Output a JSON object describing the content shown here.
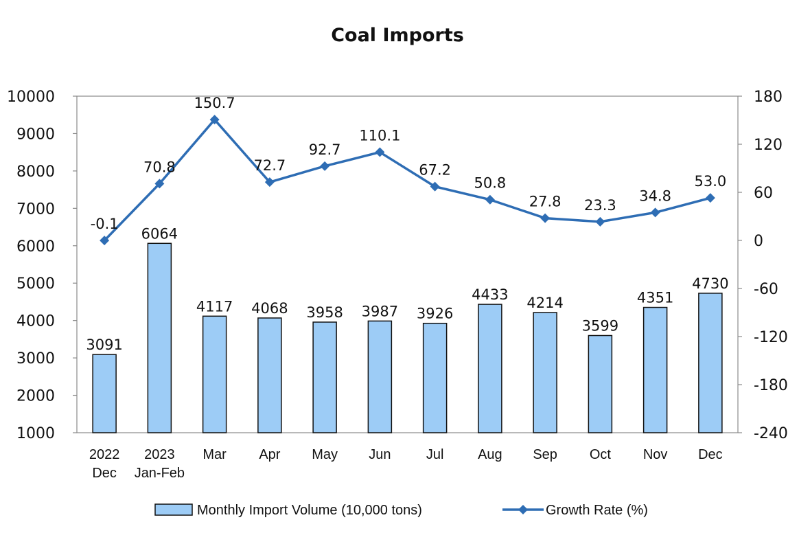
{
  "chart_data": {
    "type": "bar",
    "title": "Coal Imports",
    "categories": [
      [
        "2022",
        "Dec"
      ],
      [
        "2023",
        "Jan-Feb"
      ],
      [
        "Mar"
      ],
      [
        "Apr"
      ],
      [
        "May"
      ],
      [
        "Jun"
      ],
      [
        "Jul"
      ],
      [
        "Aug"
      ],
      [
        "Sep"
      ],
      [
        "Oct"
      ],
      [
        "Nov"
      ],
      [
        "Dec"
      ]
    ],
    "series": [
      {
        "name": "Monthly Import Volume (10,000 tons)",
        "type": "bar",
        "axis": "left",
        "color": "#9DCCF6",
        "values": [
          3091,
          6064,
          4117,
          4068,
          3958,
          3987,
          3926,
          4433,
          4214,
          3599,
          4351,
          4730
        ],
        "labels": [
          "3091",
          "6064",
          "4117",
          "4068",
          "3958",
          "3987",
          "3926",
          "4433",
          "4214",
          "3599",
          "4351",
          "4730"
        ]
      },
      {
        "name": "Growth Rate (%)",
        "type": "line",
        "axis": "right",
        "color": "#2E6DB4",
        "marker": "diamond",
        "values": [
          -0.1,
          70.8,
          150.7,
          72.7,
          92.7,
          110.1,
          67.2,
          50.8,
          27.8,
          23.3,
          34.8,
          53.0
        ],
        "labels": [
          "-0.1",
          "70.8",
          "150.7",
          "72.7",
          "92.7",
          "110.1",
          "67.2",
          "50.8",
          "27.8",
          "23.3",
          "34.8",
          "53.0"
        ]
      }
    ],
    "y_left": {
      "ylim": [
        1000,
        10000
      ],
      "ticks": [
        1000,
        2000,
        3000,
        4000,
        5000,
        6000,
        7000,
        8000,
        9000,
        10000
      ],
      "tick_labels": [
        "1000",
        "2000",
        "3000",
        "4000",
        "5000",
        "6000",
        "7000",
        "8000",
        "9000",
        "10000"
      ]
    },
    "y_right": {
      "ylim": [
        -240,
        180
      ],
      "ticks": [
        -240,
        -180,
        -120,
        -60,
        0,
        60,
        120,
        180
      ],
      "tick_labels": [
        "-240",
        "-180",
        "-120",
        "-60",
        "0",
        "60",
        "120",
        "180"
      ]
    },
    "grid": false,
    "legend_position": "bottom"
  }
}
